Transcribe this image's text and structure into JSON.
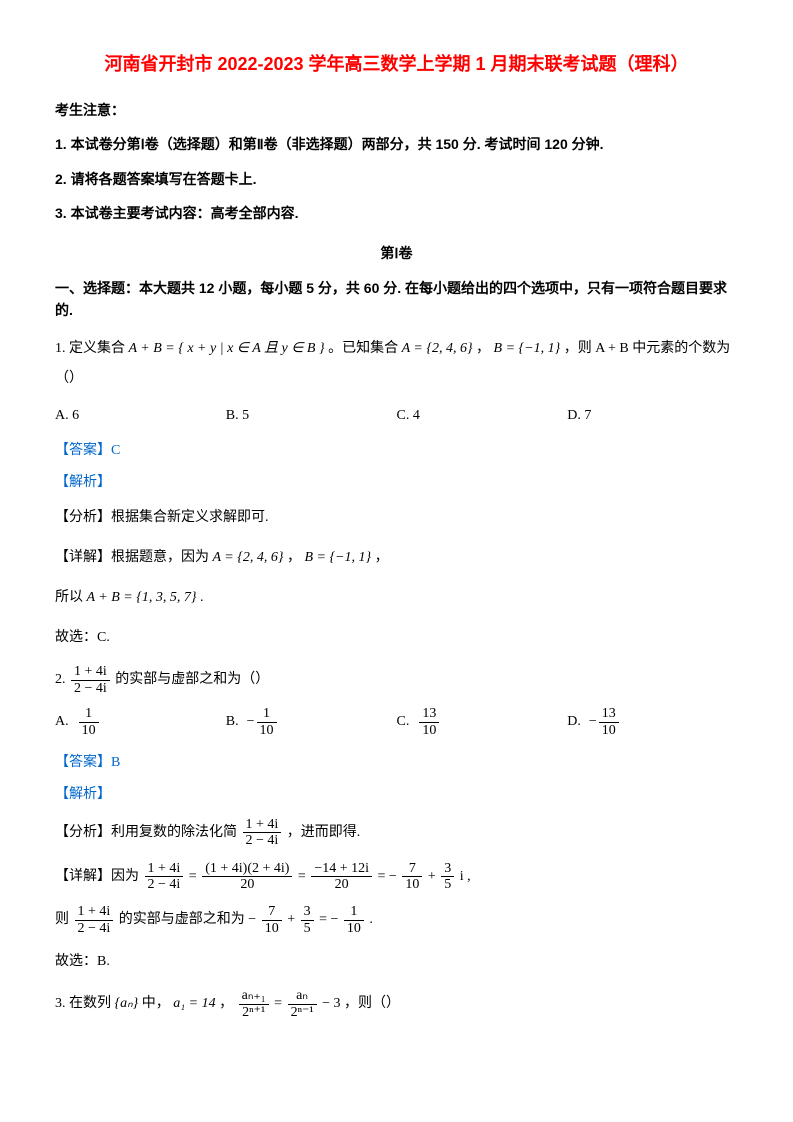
{
  "title": "河南省开封市 2022-2023 学年高三数学上学期 1 月期末联考试题（理科）",
  "notice_header": "考生注意：",
  "notice1": "1. 本试卷分第Ⅰ卷（选择题）和第Ⅱ卷（非选择题）两部分，共 150 分. 考试时间 120 分钟.",
  "notice2": "2. 请将各题答案填写在答题卡上.",
  "notice3": "3. 本试卷主要考试内容：高考全部内容.",
  "part1_header": "第Ⅰ卷",
  "section1_instruction": "一、选择题：本大题共 12 小题，每小题 5 分，共 60 分. 在每小题给出的四个选项中，只有一项符合题目要求的.",
  "q1": {
    "prefix": "1.  定义集合",
    "math1": "A + B = { x + y | x ∈ A 且 y ∈ B }",
    "mid": "。已知集合",
    "math2": "A = {2, 4, 6}",
    "sep": "，",
    "math3": "B = {−1, 1}",
    "suffix": "，则 A + B 中元素的个数为（）",
    "optA": "A.  6",
    "optB": "B.  5",
    "optC": "C.  4",
    "optD": "D.  7",
    "answer_label": "【答案】C",
    "analysis_label": "【解析】",
    "analysis1": "【分析】根据集合新定义求解即可.",
    "detail_prefix": "【详解】根据题意，因为",
    "detail_math1": "A = {2, 4, 6}",
    "detail_sep": "，",
    "detail_math2": "B = {−1, 1}",
    "detail_suffix": "，",
    "so_prefix": "所以",
    "so_math": "A + B = {1, 3, 5, 7}",
    "so_suffix": ".",
    "conclusion": "故选：C."
  },
  "q2": {
    "prefix": "2.  ",
    "frac_num": "1 + 4i",
    "frac_den": "2 − 4i",
    "suffix": " 的实部与虚部之和为（）",
    "optA_label": "A.",
    "optA_num": "1",
    "optA_den": "10",
    "optB_label": "B.",
    "optB_neg": "−",
    "optB_num": "1",
    "optB_den": "10",
    "optC_label": "C.",
    "optC_num": "13",
    "optC_den": "10",
    "optD_label": "D.",
    "optD_neg": "−",
    "optD_num": "13",
    "optD_den": "10",
    "answer_label": "【答案】B",
    "analysis_label": "【解析】",
    "analysis1_prefix": "【分析】利用复数的除法化简",
    "analysis1_num": "1 + 4i",
    "analysis1_den": "2 − 4i",
    "analysis1_suffix": "，进而即得.",
    "detail_prefix": "【详解】因为",
    "d_n1": "1 + 4i",
    "d_d1": "2 − 4i",
    "eq1": "=",
    "d_n2": "(1 + 4i)(2 + 4i)",
    "d_d2": "20",
    "eq2": "=",
    "d_n3": "−14 + 12i",
    "d_d3": "20",
    "eq3": "= −",
    "d_n4": "7",
    "d_d4": "10",
    "plus": "+",
    "d_n5": "3",
    "d_d5": "5",
    "d_suffix": "i ,",
    "then_prefix": "则",
    "t_n1": "1 + 4i",
    "t_d1": "2 − 4i",
    "then_mid": " 的实部与虚部之和为 −",
    "t_n2": "7",
    "t_d2": "10",
    "t_plus": "+",
    "t_n3": "3",
    "t_d3": "5",
    "t_eq": "= −",
    "t_n4": "1",
    "t_d4": "10",
    "then_suffix": ".",
    "conclusion": "故选：B."
  },
  "q3": {
    "prefix": "3.  在数列",
    "math1": "{aₙ}",
    "mid1": "中，",
    "math2": "a₁ = 14",
    "sep": "，",
    "f1_num": "aₙ₊₁",
    "f1_den": "2ⁿ⁺¹",
    "eq": "=",
    "f2_num": "aₙ",
    "f2_den": "2ⁿ⁻¹",
    "minus": "− 3",
    "suffix": "，则（）"
  }
}
